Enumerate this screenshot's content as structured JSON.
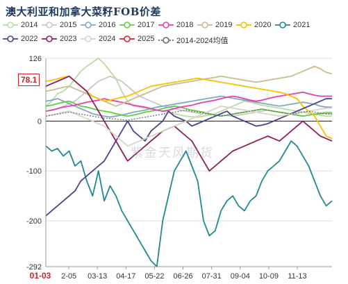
{
  "chart_data": {
    "type": "line",
    "title": "澳大利亚和加拿大菜籽FOB价差",
    "y_ticks": [
      "126",
      "0",
      "-100",
      "-200",
      "-292"
    ],
    "ylim": [
      -292,
      126
    ],
    "x_ticks": [
      "01-03",
      "2-05",
      "03-13",
      "04-17",
      "05-22",
      "06-26",
      "07-31",
      "09-04",
      "10-09",
      "11-13"
    ],
    "current_marker": "78.1",
    "watermark": "紫金天风期货",
    "x_count": 50,
    "series": [
      {
        "name": "2014",
        "color": "#b7dda0",
        "dash": "",
        "values": [
          30,
          40,
          55,
          60,
          70,
          85,
          100,
          110,
          118,
          126,
          115,
          100,
          85,
          60,
          40,
          30,
          28,
          26,
          24,
          22,
          20,
          18,
          15,
          12,
          10,
          9,
          8,
          10,
          12,
          15,
          20,
          25,
          30,
          35,
          40,
          38,
          35,
          32,
          30,
          28,
          26,
          24,
          22,
          20,
          18,
          16,
          14,
          12,
          10,
          10
        ]
      },
      {
        "name": "2015",
        "color": "#c8c8c8",
        "dash": "",
        "values": [
          20,
          22,
          25,
          30,
          35,
          40,
          50,
          60,
          70,
          80,
          85,
          90,
          85,
          80,
          70,
          60,
          50,
          45,
          40,
          35,
          30,
          28,
          25,
          22,
          20,
          18,
          16,
          15,
          14,
          13,
          12,
          11,
          10,
          12,
          14,
          16,
          18,
          20,
          22,
          20,
          18,
          16,
          14,
          12,
          10,
          12,
          14,
          16,
          18,
          18
        ]
      },
      {
        "name": "2016",
        "color": "#7fa8c8",
        "dash": "",
        "values": [
          40,
          42,
          45,
          40,
          35,
          30,
          25,
          20,
          15,
          12,
          10,
          8,
          10,
          12,
          15,
          18,
          20,
          22,
          25,
          28,
          30,
          32,
          34,
          36,
          38,
          40,
          42,
          44,
          46,
          48,
          50,
          48,
          46,
          44,
          42,
          40,
          38,
          36,
          34,
          32,
          30,
          32,
          34,
          36,
          38,
          36,
          34,
          30,
          28,
          28
        ]
      },
      {
        "name": "2017",
        "color": "#5ccf3a",
        "dash": "",
        "values": [
          30,
          32,
          35,
          38,
          40,
          35,
          30,
          28,
          25,
          22,
          20,
          18,
          15,
          12,
          10,
          12,
          15,
          18,
          20,
          22,
          25,
          28,
          30,
          28,
          25,
          22,
          20,
          18,
          15,
          12,
          10,
          12,
          14,
          16,
          18,
          20,
          22,
          24,
          22,
          20,
          18,
          16,
          14,
          12,
          10,
          12,
          14,
          15,
          16,
          16
        ]
      },
      {
        "name": "2018",
        "color": "#e83fb0",
        "dash": "",
        "values": [
          20,
          22,
          25,
          28,
          30,
          32,
          35,
          38,
          40,
          42,
          45,
          42,
          40,
          38,
          35,
          32,
          30,
          28,
          25,
          22,
          20,
          22,
          25,
          28,
          30,
          32,
          35,
          38,
          40,
          42,
          45,
          48,
          50,
          48,
          45,
          42,
          40,
          42,
          45,
          48,
          50,
          52,
          54,
          56,
          58,
          55,
          52,
          50,
          50,
          50
        ]
      },
      {
        "name": "2019",
        "color": "#c9bc8e",
        "dash": "",
        "values": [
          60,
          62,
          65,
          68,
          70,
          65,
          60,
          55,
          50,
          45,
          40,
          35,
          30,
          35,
          40,
          45,
          50,
          55,
          60,
          65,
          70,
          72,
          74,
          76,
          78,
          80,
          82,
          84,
          86,
          88,
          90,
          88,
          86,
          84,
          82,
          80,
          78,
          80,
          82,
          84,
          86,
          88,
          90,
          95,
          100,
          105,
          110,
          105,
          98,
          95
        ]
      },
      {
        "name": "2020",
        "color": "#f5c200",
        "dash": "",
        "values": [
          80,
          82,
          85,
          88,
          90,
          80,
          70,
          60,
          50,
          45,
          40,
          42,
          45,
          48,
          50,
          55,
          60,
          65,
          70,
          72,
          74,
          76,
          78,
          80,
          82,
          84,
          86,
          84,
          82,
          80,
          78,
          76,
          74,
          72,
          70,
          68,
          66,
          64,
          62,
          60,
          58,
          55,
          50,
          45,
          30,
          20,
          10,
          -10,
          -30,
          -35
        ]
      },
      {
        "name": "2021",
        "color": "#1e8a8e",
        "dash": "",
        "values": [
          -50,
          -60,
          -55,
          -70,
          -60,
          -90,
          -80,
          -120,
          -150,
          -100,
          -160,
          -130,
          -150,
          -180,
          -200,
          -220,
          -240,
          -260,
          -280,
          -292,
          -200,
          -150,
          -100,
          -80,
          -60,
          -90,
          -120,
          -200,
          -230,
          -220,
          -180,
          -160,
          -150,
          -170,
          -180,
          -160,
          -150,
          -120,
          -100,
          -90,
          -80,
          -60,
          -40,
          -50,
          -70,
          -90,
          -120,
          -150,
          -170,
          -160
        ]
      },
      {
        "name": "2022",
        "color": "#4b3f8e",
        "dash": "",
        "values": [
          -190,
          -180,
          -170,
          -160,
          -150,
          -140,
          -120,
          -110,
          -100,
          -90,
          -80,
          -60,
          -40,
          -20,
          0,
          -20,
          -30,
          -40,
          -20,
          -10,
          0,
          20,
          10,
          5,
          0,
          -10,
          -5,
          0,
          5,
          10,
          15,
          20,
          10,
          5,
          0,
          -5,
          -10,
          -8,
          -5,
          0,
          5,
          10,
          15,
          20,
          25,
          30,
          35,
          40,
          45,
          45
        ]
      },
      {
        "name": "2023",
        "color": "#8e1c5e",
        "dash": "",
        "values": [
          70,
          75,
          80,
          85,
          90,
          80,
          70,
          60,
          40,
          20,
          0,
          -20,
          -40,
          -60,
          -80,
          -70,
          -60,
          -50,
          -40,
          -30,
          -20,
          -15,
          -10,
          -20,
          -30,
          -40,
          -60,
          -80,
          -100,
          -90,
          -80,
          -70,
          -60,
          -55,
          -50,
          -45,
          -40,
          -35,
          -30,
          -35,
          -40,
          -30,
          -20,
          -10,
          0,
          -10,
          -20,
          -30,
          -35,
          -40
        ]
      },
      {
        "name": "2024",
        "color": "#d9d3c2",
        "dash": "",
        "values": [
          10,
          12,
          15,
          18,
          20,
          15,
          10,
          5,
          0,
          -5,
          -10,
          -20,
          -30,
          -40,
          -50,
          -45,
          -40,
          -35,
          -30,
          -25,
          -20,
          -15,
          -10,
          -5,
          0,
          5,
          10,
          15,
          20,
          25,
          30,
          28,
          26,
          24,
          22,
          20,
          18,
          16,
          14,
          12,
          10,
          12,
          14,
          16,
          18,
          20,
          22,
          24,
          26,
          26
        ]
      },
      {
        "name": "2025",
        "color": "#d61f26",
        "dash": "",
        "values": [
          null,
          null,
          null,
          null,
          null,
          null,
          null,
          null,
          null,
          null,
          null,
          null,
          null,
          null,
          null,
          null,
          null,
          null,
          null,
          null,
          null,
          null,
          null,
          null,
          null,
          null,
          null,
          null,
          null,
          null,
          null,
          null,
          null,
          null,
          null,
          null,
          null,
          null,
          null,
          null,
          null,
          null,
          null,
          null,
          null,
          null,
          null,
          null,
          null,
          null
        ]
      },
      {
        "name": "2014-2024均值",
        "color": "#666666",
        "dash": "2,2",
        "values": [
          10,
          12,
          14,
          16,
          18,
          16,
          14,
          12,
          10,
          8,
          6,
          5,
          4,
          3,
          2,
          4,
          6,
          8,
          10,
          12,
          14,
          16,
          18,
          20,
          22,
          20,
          18,
          16,
          14,
          12,
          10,
          12,
          14,
          16,
          18,
          20,
          22,
          24,
          22,
          20,
          18,
          16,
          14,
          16,
          18,
          20,
          18,
          16,
          14,
          14
        ]
      }
    ]
  }
}
